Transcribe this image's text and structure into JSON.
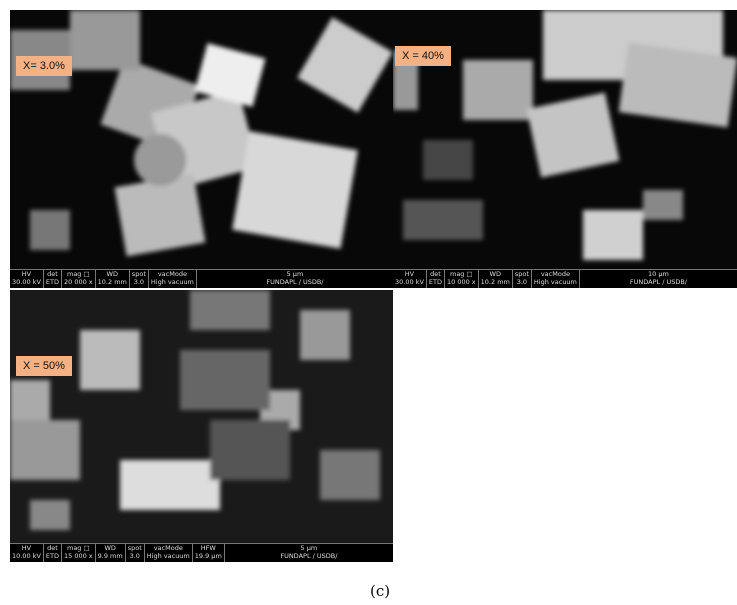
{
  "panels": [
    {
      "label": "X= 3.0%",
      "info": {
        "headers": [
          "HV",
          "det",
          "mag □",
          "WD",
          "spot",
          "vacMode",
          "5 μm"
        ],
        "values": [
          "30.00 kV",
          "ETD",
          "20 000 x",
          "10.2 mm",
          "3.0",
          "High vacuum",
          "FUNDAPL / USDB/"
        ]
      }
    },
    {
      "label": "X = 40%",
      "info": {
        "headers": [
          "HV",
          "det",
          "mag □",
          "WD",
          "spot",
          "vacMode",
          "10 μm"
        ],
        "values": [
          "30.00 kV",
          "ETD",
          "10 000 x",
          "10.2 mm",
          "3.0",
          "High vacuum",
          "FUNDAPL / USDB/"
        ]
      }
    },
    {
      "label": "X = 50%",
      "info": {
        "headers": [
          "HV",
          "det",
          "mag □",
          "WD",
          "spot",
          "vacMode",
          "HFW",
          "5 μm"
        ],
        "values": [
          "10.00 kV",
          "ETD",
          "15 000 x",
          "9.9 mm",
          "3.0",
          "High vacuum",
          "19.9 μm",
          "FUNDAPL / USDB/"
        ]
      }
    }
  ],
  "caption": "(c)"
}
